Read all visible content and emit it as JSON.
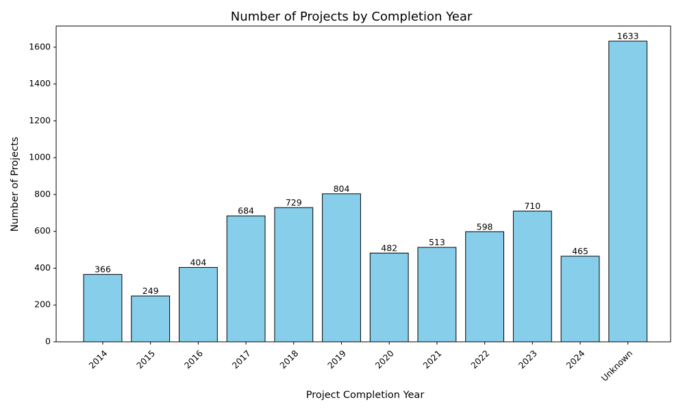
{
  "chart_data": {
    "type": "bar",
    "title": "Number of Projects by Completion Year",
    "xlabel": "Project Completion Year",
    "ylabel": "Number of Projects",
    "categories": [
      "2014",
      "2015",
      "2016",
      "2017",
      "2018",
      "2019",
      "2020",
      "2021",
      "2022",
      "2023",
      "2024",
      "Unknown"
    ],
    "values": [
      366,
      249,
      404,
      684,
      729,
      804,
      482,
      513,
      598,
      710,
      465,
      1633
    ],
    "ylim": [
      0,
      1715
    ],
    "yticks": [
      0,
      200,
      400,
      600,
      800,
      1000,
      1200,
      1400,
      1600
    ],
    "bar_color": "#87CEEB",
    "edge_color": "#000000",
    "grid": false,
    "legend": "none",
    "xtick_rotation": 45
  }
}
